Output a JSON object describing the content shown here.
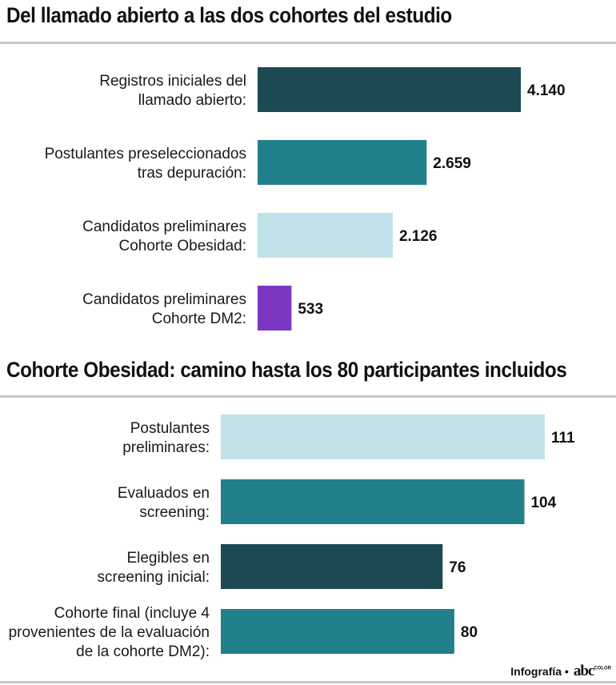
{
  "charts": [
    {
      "title": "Del llamado abierto a las dos cohortes del estudio",
      "chart_data": {
        "type": "bar",
        "orientation": "horizontal",
        "categories": [
          "Registros iniciales del\nllamado abierto:",
          "Postulantes preseleccionados\ntras depuración:",
          "Candidatos preliminares\nCohorte Obesidad:",
          "Candidatos preliminares\nCohorte DM2:"
        ],
        "values": [
          4140,
          2659,
          2126,
          533
        ],
        "value_labels": [
          "4.140",
          "2.659",
          "2.126",
          "533"
        ],
        "colors": [
          "#1d4a52",
          "#21808c",
          "#bee2e8",
          "#7b36c2"
        ],
        "xlim": [
          0,
          4140
        ],
        "grid": false
      }
    },
    {
      "title": "Cohorte Obesidad: camino hasta los 80 participantes incluidos",
      "chart_data": {
        "type": "bar",
        "orientation": "horizontal",
        "categories": [
          "Postulantes\npreliminares:",
          "Evaluados en\nscreening:",
          "Elegibles en\nscreening inicial:",
          "Cohorte final (incluye 4\nprovenientes de la evaluación\nde la cohorte DM2):"
        ],
        "values": [
          111,
          104,
          76,
          80
        ],
        "value_labels": [
          "111",
          "104",
          "76",
          "80"
        ],
        "colors": [
          "#bee2e8",
          "#21808c",
          "#1d4a52",
          "#21808c"
        ],
        "xlim": [
          0,
          111
        ],
        "grid": false
      }
    }
  ],
  "footer": {
    "credit": "Infografía •",
    "brand": "abc",
    "brand_sub": "COLOR"
  }
}
